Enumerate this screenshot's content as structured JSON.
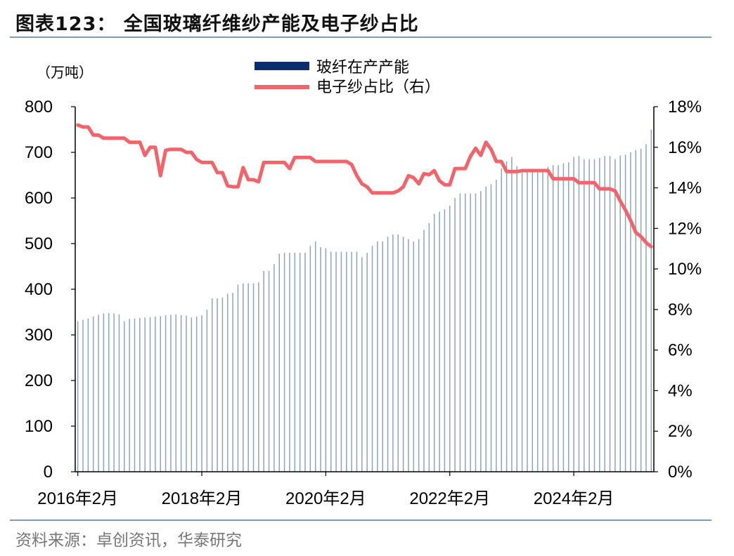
{
  "title": "图表123： 全国玻璃纤维纱产能及电子纱占比",
  "source": "资料来源：卓创资讯，华泰研究",
  "chart_data": {
    "type": "bar+line",
    "left_unit": "（万吨）",
    "y_left": {
      "min": 0,
      "max": 800,
      "ticks": [
        "0",
        "100",
        "200",
        "300",
        "400",
        "500",
        "600",
        "700",
        "800"
      ]
    },
    "y_right": {
      "min": 0,
      "max": 18,
      "ticks": [
        "0%",
        "2%",
        "4%",
        "6%",
        "8%",
        "10%",
        "12%",
        "14%",
        "16%",
        "18%"
      ]
    },
    "x_tick_labels": [
      {
        "label": "2016年2月",
        "index": 0
      },
      {
        "label": "2018年2月",
        "index": 24
      },
      {
        "label": "2020年2月",
        "index": 48
      },
      {
        "label": "2022年2月",
        "index": 72
      },
      {
        "label": "2024年2月",
        "index": 96
      }
    ],
    "months_start": "2016-02",
    "legend": [
      {
        "name": "玻纤在产产能",
        "color": "#0b2d6b",
        "kind": "bar"
      },
      {
        "name": "电子纱占比（右）",
        "color": "#f2646a",
        "kind": "line"
      }
    ],
    "series": [
      {
        "name": "玻纤在产产能",
        "axis": "left",
        "color": "#8da5b8",
        "values": [
          330,
          333,
          336,
          340,
          344,
          347,
          348,
          347,
          345,
          330,
          335,
          336,
          337,
          338,
          339,
          340,
          341,
          343,
          344,
          345,
          343,
          342,
          338,
          340,
          343,
          355,
          380,
          380,
          382,
          390,
          392,
          410,
          413,
          413,
          413,
          415,
          440,
          440,
          455,
          478,
          480,
          480,
          480,
          480,
          480,
          495,
          505,
          492,
          490,
          482,
          482,
          482,
          482,
          482,
          482,
          470,
          480,
          495,
          505,
          505,
          515,
          520,
          520,
          515,
          510,
          505,
          510,
          530,
          545,
          565,
          570,
          575,
          583,
          600,
          610,
          610,
          610,
          610,
          615,
          625,
          630,
          640,
          665,
          680,
          690,
          670,
          655,
          658,
          660,
          661,
          662,
          668,
          672,
          672,
          676,
          678,
          690,
          692,
          685,
          685,
          685,
          688,
          692,
          692,
          685,
          693,
          695,
          700,
          705,
          708,
          718,
          750
        ]
      },
      {
        "name": "电子纱占比（右）",
        "axis": "right",
        "color": "#f2646a",
        "values": [
          17.1,
          17.0,
          17.0,
          16.6,
          16.6,
          16.45,
          16.45,
          16.45,
          16.45,
          16.45,
          16.25,
          16.25,
          16.25,
          15.6,
          16.0,
          16.0,
          14.6,
          15.85,
          15.9,
          15.9,
          15.9,
          15.75,
          15.75,
          15.4,
          15.25,
          15.25,
          15.25,
          14.75,
          14.75,
          14.1,
          14.05,
          14.05,
          15.0,
          14.4,
          14.4,
          14.3,
          15.25,
          15.25,
          15.25,
          15.25,
          15.25,
          14.95,
          15.5,
          15.5,
          15.5,
          15.5,
          15.3,
          15.3,
          15.3,
          15.3,
          15.3,
          15.3,
          15.3,
          15.15,
          14.6,
          14.2,
          14.05,
          13.75,
          13.75,
          13.75,
          13.75,
          13.75,
          13.85,
          14.05,
          14.6,
          14.5,
          14.2,
          14.7,
          14.65,
          14.85,
          14.35,
          14.15,
          14.15,
          14.95,
          14.95,
          14.95,
          15.55,
          15.95,
          15.6,
          16.25,
          15.9,
          15.3,
          15.3,
          14.8,
          14.8,
          14.8,
          14.85,
          14.85,
          14.85,
          14.85,
          14.85,
          14.85,
          14.45,
          14.45,
          14.45,
          14.45,
          14.45,
          14.25,
          14.25,
          14.25,
          14.25,
          13.95,
          13.95,
          13.95,
          13.85,
          13.35,
          12.9,
          12.4,
          11.8,
          11.6,
          11.3,
          11.1
        ]
      }
    ]
  }
}
